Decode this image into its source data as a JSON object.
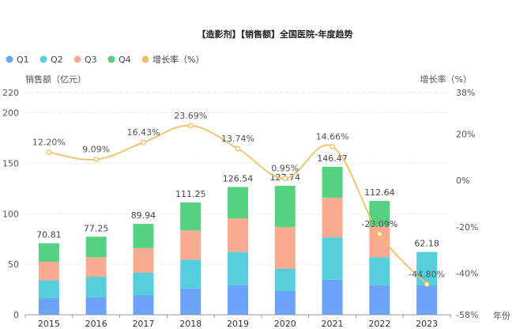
{
  "chart_data": {
    "type": "bar",
    "title": "【造影剂】【销售额】全国医院-年度趋势",
    "categories": [
      "2015",
      "2016",
      "2017",
      "2018",
      "2019",
      "2020",
      "2021",
      "2022",
      "2023"
    ],
    "series": [
      {
        "name": "Q1",
        "color": "#6aa3f7",
        "values": [
          16.5,
          17.5,
          19.5,
          26.0,
          29.5,
          23.5,
          34.5,
          29.5,
          29.0
        ]
      },
      {
        "name": "Q2",
        "color": "#56cfdc",
        "values": [
          17.5,
          20.0,
          22.0,
          28.5,
          32.5,
          22.0,
          42.0,
          27.5,
          33.18
        ]
      },
      {
        "name": "Q3",
        "color": "#f9ab92",
        "values": [
          18.5,
          19.5,
          24.5,
          29.0,
          33.5,
          41.5,
          39.5,
          30.5,
          0
        ]
      },
      {
        "name": "Q4",
        "color": "#56d182",
        "values": [
          18.31,
          20.25,
          23.94,
          27.75,
          31.04,
          40.74,
          30.47,
          25.14,
          0
        ]
      }
    ],
    "totals": [
      "70.81",
      "77.25",
      "89.94",
      "111.25",
      "126.54",
      "127.74",
      "146.47",
      "112.64",
      "62.18"
    ],
    "rate_series": {
      "name": "增长率（%）",
      "color": "#efc063",
      "values": [
        12.2,
        9.09,
        16.43,
        23.69,
        13.74,
        0.95,
        14.66,
        -23.09,
        -44.8
      ],
      "labels": [
        "12.20%",
        "9.09%",
        "16.43%",
        "23.69%",
        "13.74%",
        "0.95%",
        "14.66%",
        "-23.09%",
        "-44.80%"
      ]
    },
    "left_axis": {
      "title": "销售额（亿元）",
      "ylim": [
        0,
        220
      ],
      "ticks": [
        0,
        50,
        100,
        150,
        200,
        220
      ]
    },
    "right_axis": {
      "title": "增长率（%）",
      "ylim": [
        -58,
        38
      ],
      "ticks": [
        -58,
        -40,
        -20,
        0,
        20,
        38
      ],
      "tick_labels": [
        "-58%",
        "-40%",
        "-20%",
        "0%",
        "20%",
        "38%"
      ]
    },
    "xlabel": "年份",
    "legend_position": "top-left"
  }
}
